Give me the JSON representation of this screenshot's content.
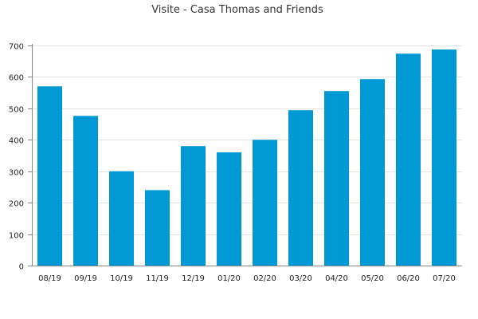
{
  "chart_data": {
    "type": "bar",
    "title": "Visite - Casa Thomas and Friends",
    "xlabel": "",
    "ylabel": "",
    "categories": [
      "08/19",
      "09/19",
      "10/19",
      "11/19",
      "12/19",
      "01/20",
      "02/20",
      "03/20",
      "04/20",
      "05/20",
      "06/20",
      "07/20"
    ],
    "values": [
      570,
      476,
      300,
      240,
      380,
      360,
      400,
      494,
      555,
      593,
      674,
      687
    ],
    "ylim": [
      0,
      700
    ],
    "yticks": [
      0,
      100,
      200,
      300,
      400,
      500,
      600,
      700
    ],
    "grid": true,
    "bar_color": "#0099d6"
  }
}
